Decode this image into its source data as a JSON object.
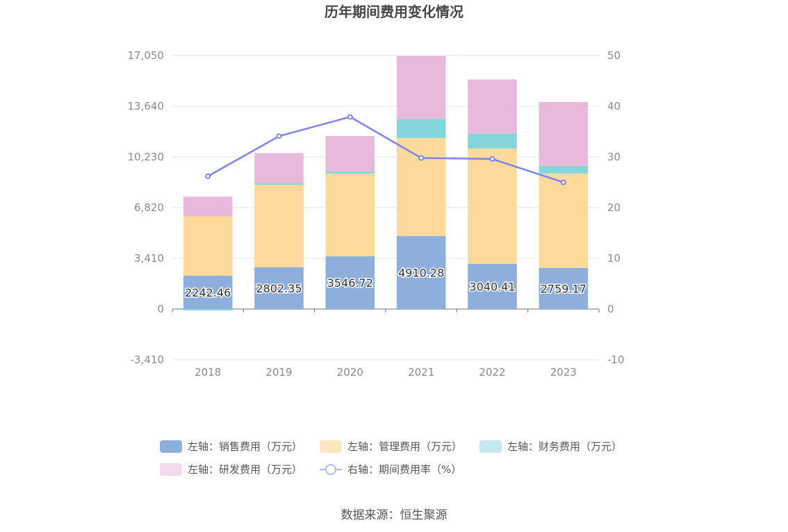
{
  "chart_data": {
    "type": "bar",
    "title": "历年期间费用变化情况",
    "categories": [
      "2018",
      "2019",
      "2020",
      "2021",
      "2022",
      "2023"
    ],
    "y_left": {
      "ticks": [
        "-3,410",
        "0",
        "3,410",
        "6,820",
        "10,230",
        "13,640",
        "17,050"
      ],
      "ylim": [
        -3410,
        17050
      ]
    },
    "y_right": {
      "ticks": [
        "-10",
        "0",
        "10",
        "20",
        "30",
        "40",
        "50"
      ],
      "ylim": [
        -10,
        50
      ]
    },
    "series": [
      {
        "name": "左轴：销售费用（万元）",
        "kind": "bar",
        "color": "#8eaedb",
        "values": [
          2242.46,
          2802.35,
          3546.72,
          4910.28,
          3040.41,
          2759.17
        ],
        "labels": [
          "2242.46",
          "2802.35",
          "3546.72",
          "4910.28",
          "3040.41",
          "2759.17"
        ]
      },
      {
        "name": "左轴：管理费用（万元）",
        "kind": "bar",
        "color": "#fdd99b",
        "values": [
          3990,
          5560,
          5570,
          6590,
          7760,
          6360
        ]
      },
      {
        "name": "左轴：财务费用（万元）",
        "kind": "bar",
        "color": "#85d6dc",
        "values": [
          -90,
          130,
          140,
          1290,
          1010,
          520
        ]
      },
      {
        "name": "左轴：研发费用（万元）",
        "kind": "bar",
        "color": "#e8b9db",
        "values": [
          1330,
          2000,
          2380,
          4230,
          3630,
          4290
        ]
      },
      {
        "name": "右轴：期间费用率（%）",
        "kind": "line",
        "color": "#7b84ef",
        "values": [
          26.2,
          34.1,
          37.9,
          29.8,
          29.6,
          25.0
        ]
      }
    ],
    "legend_position": "bottom",
    "grid": true
  },
  "footer": {
    "source": "数据来源：恒生聚源"
  }
}
